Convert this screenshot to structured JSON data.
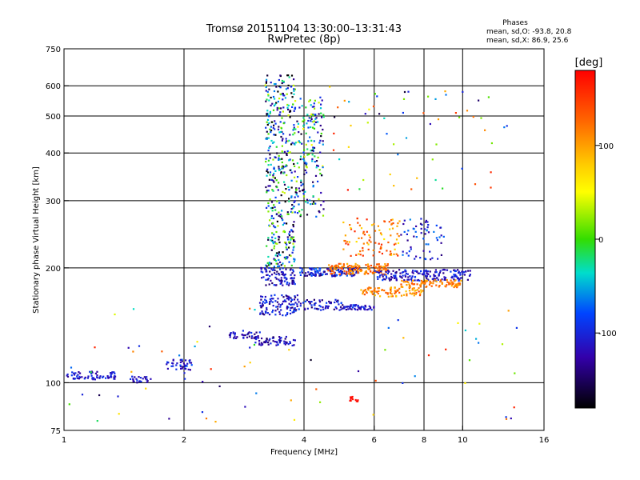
{
  "chart_data": {
    "type": "scatter",
    "title": "Tromsø 20151104 13:30:00–13:31:43",
    "subtitle": "RwPretec (8p)",
    "stats": {
      "heading": "Phases",
      "line1": "mean, sd,O: -93.8, 20.8",
      "line2": "mean, sd,X:  86.9, 25.6"
    },
    "xlabel": "Frequency [MHz]",
    "ylabel": "Stationary phase Virtual Height [km]",
    "x_scale": "log",
    "y_scale": "log",
    "xlim": [
      1,
      16
    ],
    "ylim": [
      75,
      750
    ],
    "x_ticks": [
      1,
      2,
      4,
      6,
      8,
      10,
      16
    ],
    "y_ticks": [
      75,
      100,
      200,
      300,
      400,
      500,
      600,
      750
    ],
    "x_grid": [
      2,
      4,
      6,
      8,
      10
    ],
    "y_grid": [
      100,
      200,
      300,
      400,
      500,
      600
    ],
    "grid": true,
    "colorbar": {
      "label": "[deg]",
      "range": [
        -180,
        180
      ],
      "ticks": [
        100,
        0,
        -100
      ]
    },
    "clusters": [
      {
        "x": [
          1.0,
          1.35
        ],
        "y": [
          102,
          107
        ],
        "n": 70,
        "phase": -110,
        "jitter": 25
      },
      {
        "x": [
          1.45,
          1.65
        ],
        "y": [
          100,
          104
        ],
        "n": 25,
        "phase": -110,
        "jitter": 25
      },
      {
        "x": [
          1.8,
          2.1
        ],
        "y": [
          108,
          115
        ],
        "n": 40,
        "phase": -105,
        "jitter": 30
      },
      {
        "x": [
          2.6,
          3.1
        ],
        "y": [
          130,
          137
        ],
        "n": 40,
        "phase": -115,
        "jitter": 30
      },
      {
        "x": [
          3.0,
          3.8
        ],
        "y": [
          125,
          132
        ],
        "n": 60,
        "phase": -120,
        "jitter": 30
      },
      {
        "x": [
          3.1,
          3.9
        ],
        "y": [
          150,
          170
        ],
        "n": 110,
        "phase": -110,
        "jitter": 35
      },
      {
        "x": [
          3.1,
          3.8
        ],
        "y": [
          180,
          200
        ],
        "n": 90,
        "phase": -115,
        "jitter": 35
      },
      {
        "x": [
          3.2,
          3.8
        ],
        "y": [
          200,
          640
        ],
        "n": 420,
        "phase": -80,
        "jitter": 120
      },
      {
        "x": [
          3.8,
          4.5
        ],
        "y": [
          270,
          560
        ],
        "n": 180,
        "phase": -60,
        "jitter": 110
      },
      {
        "x": [
          3.9,
          5.0
        ],
        "y": [
          155,
          165
        ],
        "n": 60,
        "phase": -110,
        "jitter": 35
      },
      {
        "x": [
          3.9,
          5.5
        ],
        "y": [
          190,
          200
        ],
        "n": 120,
        "phase": -105,
        "jitter": 40
      },
      {
        "x": [
          4.6,
          6.5
        ],
        "y": [
          192,
          205
        ],
        "n": 140,
        "phase": 120,
        "jitter": 30
      },
      {
        "x": [
          5.0,
          6.0
        ],
        "y": [
          155,
          160
        ],
        "n": 50,
        "phase": -110,
        "jitter": 30
      },
      {
        "x": [
          5.0,
          7.0
        ],
        "y": [
          215,
          270
        ],
        "n": 90,
        "phase": 110,
        "jitter": 50
      },
      {
        "x": [
          5.5,
          8.0
        ],
        "y": [
          168,
          178
        ],
        "n": 90,
        "phase": 110,
        "jitter": 30
      },
      {
        "x": [
          6.0,
          10.5
        ],
        "y": [
          185,
          198
        ],
        "n": 180,
        "phase": -110,
        "jitter": 30
      },
      {
        "x": [
          7.0,
          10.0
        ],
        "y": [
          178,
          186
        ],
        "n": 90,
        "phase": 115,
        "jitter": 25
      },
      {
        "x": [
          7.0,
          9.0
        ],
        "y": [
          210,
          270
        ],
        "n": 60,
        "phase": -100,
        "jitter": 40
      },
      {
        "x": [
          5.2,
          5.5
        ],
        "y": [
          89,
          92
        ],
        "n": 12,
        "phase": 175,
        "jitter": 5
      },
      {
        "x": [
          4.5,
          13.0
        ],
        "y": [
          320,
          600
        ],
        "n": 60,
        "phase": 0,
        "jitter": 170
      },
      {
        "x": [
          1.0,
          14.0
        ],
        "y": [
          78,
          160
        ],
        "n": 70,
        "phase": 0,
        "jitter": 170
      }
    ]
  }
}
